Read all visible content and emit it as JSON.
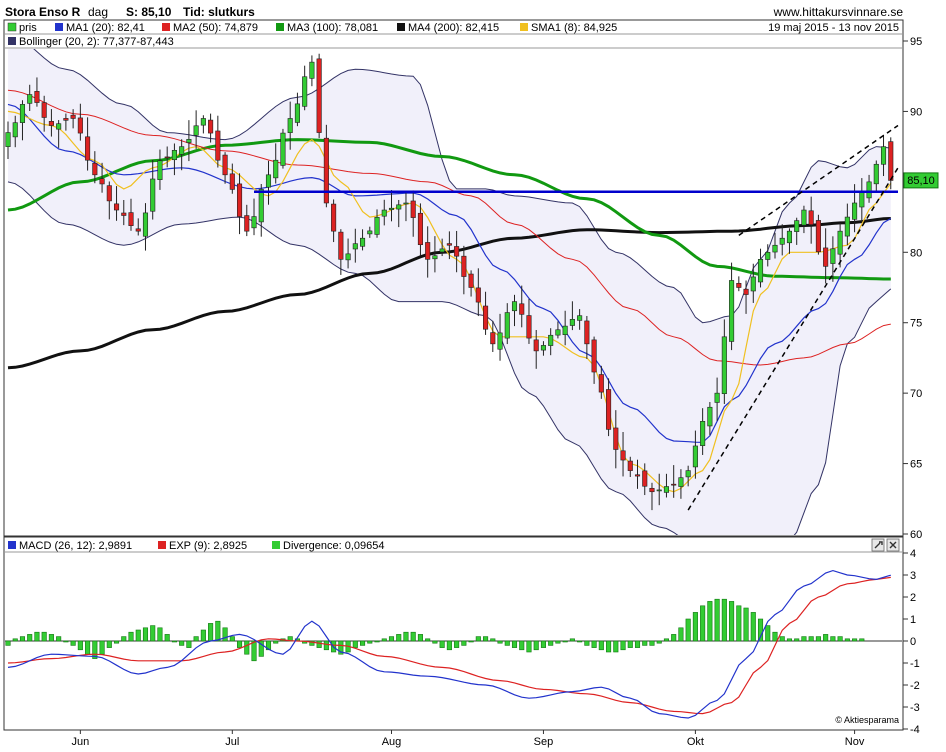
{
  "header": {
    "symbol": "Stora Enso R",
    "interval": "dag",
    "close_label": "S: 85,10",
    "type_label": "Tid: slutkurs",
    "site": "www.hittakursvinnare.se",
    "period": "19 maj 2015 - 13 nov 2015"
  },
  "legend": {
    "price": "pris",
    "ma1": "MA1 (20): 82,41",
    "ma2": "MA2 (50): 74,879",
    "ma3": "MA3 (100): 78,081",
    "ma4": "MA4 (200): 82,415",
    "sma1": "SMA1 (8): 84,925",
    "bollinger": "Bollinger (20, 2): 77,377-87,443"
  },
  "last_price_label": "85,10",
  "macd_legend": {
    "macd": "MACD (26, 12): 2,9891",
    "exp": "EXP (9): 2,8925",
    "div": "Divergence: 0,09654"
  },
  "credit": "© Aktiesparama",
  "colors": {
    "up": "#33cc33",
    "down": "#dd2222",
    "ma1": "#2233cc",
    "ma2": "#dd2222",
    "ma3": "#119911",
    "ma4": "#111111",
    "sma1": "#f0c020",
    "bollinger": "#333366",
    "band_fill": "#f1f0fa",
    "support": "#0000cc"
  },
  "icons": [
    "wrench-icon",
    "close-icon"
  ],
  "chart_data": [
    {
      "type": "candlestick",
      "ylim": [
        60,
        95
      ],
      "yticks": [
        60,
        65,
        70,
        75,
        80,
        85,
        90,
        95
      ],
      "xlabels": [
        {
          "i": 10,
          "label": "Jun"
        },
        {
          "i": 31,
          "label": "Jul"
        },
        {
          "i": 53,
          "label": "Aug"
        },
        {
          "i": 74,
          "label": "Sep"
        },
        {
          "i": 95,
          "label": "Okt"
        },
        {
          "i": 117,
          "label": "Nov"
        }
      ],
      "grid": false,
      "candle_anchor_close": [
        [
          0,
          88.5
        ],
        [
          3,
          91.2
        ],
        [
          6,
          89.0
        ],
        [
          9,
          89.5
        ],
        [
          12,
          85.5
        ],
        [
          15,
          83.0
        ],
        [
          18,
          81.5
        ],
        [
          21,
          86.5
        ],
        [
          24,
          87.5
        ],
        [
          27,
          89.5
        ],
        [
          30,
          85.5
        ],
        [
          33,
          81.5
        ],
        [
          36,
          85.5
        ],
        [
          39,
          89.5
        ],
        [
          42,
          93.5
        ],
        [
          44,
          83.5
        ],
        [
          46,
          79.5
        ],
        [
          49,
          81.0
        ],
        [
          52,
          83.0
        ],
        [
          55,
          83.5
        ],
        [
          58,
          79.5
        ],
        [
          61,
          80.5
        ],
        [
          64,
          77.5
        ],
        [
          67,
          73.5
        ],
        [
          70,
          76.5
        ],
        [
          73,
          73.0
        ],
        [
          76,
          74.5
        ],
        [
          79,
          75.5
        ],
        [
          81,
          71.5
        ],
        [
          84,
          66.0
        ],
        [
          86,
          64.5
        ],
        [
          89,
          63.0
        ],
        [
          92,
          63.5
        ],
        [
          94,
          64.5
        ],
        [
          96,
          68.0
        ],
        [
          98,
          70.0
        ],
        [
          100,
          78.0
        ],
        [
          102,
          77.0
        ],
        [
          104,
          79.5
        ],
        [
          106,
          80.5
        ],
        [
          108,
          81.5
        ],
        [
          110,
          83.0
        ],
        [
          113,
          79.0
        ],
        [
          115,
          81.5
        ],
        [
          117,
          83.5
        ],
        [
          119,
          85.0
        ],
        [
          121,
          87.5
        ],
        [
          122,
          85.1
        ]
      ],
      "ma_anchors": {
        "ma1": [
          [
            0,
            90.5
          ],
          [
            8,
            87.2
          ],
          [
            16,
            85.5
          ],
          [
            24,
            86.0
          ],
          [
            34,
            84.5
          ],
          [
            42,
            85.3
          ],
          [
            48,
            84.0
          ],
          [
            56,
            84.2
          ],
          [
            62,
            82.6
          ],
          [
            68,
            78.8
          ],
          [
            74,
            76.0
          ],
          [
            80,
            72.8
          ],
          [
            86,
            69.0
          ],
          [
            92,
            66.6
          ],
          [
            96,
            66.5
          ],
          [
            100,
            69.5
          ],
          [
            106,
            73.5
          ],
          [
            112,
            76.0
          ],
          [
            117,
            79.5
          ],
          [
            122,
            82.4
          ]
        ],
        "ma2": [
          [
            0,
            91.5
          ],
          [
            10,
            89.8
          ],
          [
            20,
            88.3
          ],
          [
            30,
            87.2
          ],
          [
            40,
            86.2
          ],
          [
            50,
            85.6
          ],
          [
            58,
            85.0
          ],
          [
            64,
            84.0
          ],
          [
            70,
            82.0
          ],
          [
            78,
            79.5
          ],
          [
            86,
            76.0
          ],
          [
            92,
            74.0
          ],
          [
            98,
            72.3
          ],
          [
            104,
            72.0
          ],
          [
            110,
            72.5
          ],
          [
            116,
            73.5
          ],
          [
            122,
            74.9
          ]
        ],
        "ma3": [
          [
            0,
            83.0
          ],
          [
            10,
            85.0
          ],
          [
            20,
            86.5
          ],
          [
            30,
            87.6
          ],
          [
            40,
            88.0
          ],
          [
            50,
            87.8
          ],
          [
            60,
            86.8
          ],
          [
            70,
            85.5
          ],
          [
            80,
            83.8
          ],
          [
            90,
            81.2
          ],
          [
            98,
            79.0
          ],
          [
            106,
            78.3
          ],
          [
            114,
            78.2
          ],
          [
            122,
            78.1
          ]
        ],
        "ma4": [
          [
            0,
            71.8
          ],
          [
            10,
            73.0
          ],
          [
            20,
            74.5
          ],
          [
            30,
            75.8
          ],
          [
            40,
            77.0
          ],
          [
            50,
            78.5
          ],
          [
            60,
            80.0
          ],
          [
            70,
            81.0
          ],
          [
            80,
            81.6
          ],
          [
            90,
            81.4
          ],
          [
            100,
            81.5
          ],
          [
            110,
            81.9
          ],
          [
            116,
            82.1
          ],
          [
            122,
            82.4
          ]
        ],
        "sma1": [
          [
            0,
            90.0
          ],
          [
            6,
            89.0
          ],
          [
            12,
            86.5
          ],
          [
            16,
            84.5
          ],
          [
            20,
            86.0
          ],
          [
            26,
            87.5
          ],
          [
            30,
            86.0
          ],
          [
            36,
            84.0
          ],
          [
            42,
            88.0
          ],
          [
            46,
            85.0
          ],
          [
            50,
            82.5
          ],
          [
            56,
            83.5
          ],
          [
            62,
            79.5
          ],
          [
            68,
            74.0
          ],
          [
            74,
            74.0
          ],
          [
            80,
            72.5
          ],
          [
            86,
            65.0
          ],
          [
            92,
            63.0
          ],
          [
            96,
            64.5
          ],
          [
            100,
            69.5
          ],
          [
            104,
            77.0
          ],
          [
            108,
            80.0
          ],
          [
            112,
            80.0
          ],
          [
            116,
            80.5
          ],
          [
            120,
            83.5
          ],
          [
            122,
            84.9
          ]
        ],
        "bb_upper": [
          [
            0,
            95.5
          ],
          [
            8,
            93.0
          ],
          [
            16,
            90.5
          ],
          [
            22,
            88.5
          ],
          [
            30,
            88.0
          ],
          [
            40,
            91.0
          ],
          [
            48,
            93.0
          ],
          [
            56,
            92.5
          ],
          [
            62,
            84.5
          ],
          [
            66,
            84.5
          ],
          [
            70,
            84.0
          ],
          [
            78,
            83.5
          ],
          [
            84,
            80.0
          ],
          [
            92,
            77.5
          ],
          [
            96,
            75.0
          ],
          [
            100,
            75.5
          ],
          [
            104,
            79.5
          ],
          [
            108,
            83.5
          ],
          [
            112,
            86.5
          ],
          [
            116,
            86.0
          ],
          [
            120,
            87.5
          ],
          [
            122,
            87.4
          ]
        ],
        "bb_lower": [
          [
            0,
            85.0
          ],
          [
            8,
            82.0
          ],
          [
            16,
            80.5
          ],
          [
            24,
            82.0
          ],
          [
            32,
            82.5
          ],
          [
            40,
            80.5
          ],
          [
            48,
            78.5
          ],
          [
            54,
            76.5
          ],
          [
            60,
            76.5
          ],
          [
            66,
            75.5
          ],
          [
            72,
            70.0
          ],
          [
            78,
            66.5
          ],
          [
            84,
            63.0
          ],
          [
            90,
            60.5
          ],
          [
            96,
            59.0
          ],
          [
            102,
            58.5
          ],
          [
            108,
            59.5
          ],
          [
            112,
            63.5
          ],
          [
            116,
            73.5
          ],
          [
            120,
            76.5
          ],
          [
            122,
            77.4
          ]
        ]
      },
      "support_line": {
        "from_i": 34,
        "to_i": 123,
        "value": 84.3
      },
      "channel_upper": [
        [
          101,
          81.2
        ],
        [
          123,
          89.0
        ]
      ],
      "channel_lower": [
        [
          94,
          61.7
        ],
        [
          123,
          86.0
        ]
      ],
      "last_value": 85.1
    },
    {
      "type": "macd",
      "ylim": [
        -4,
        4
      ],
      "yticks": [
        -4,
        -3,
        -2,
        -1,
        0,
        1,
        2,
        3,
        4
      ],
      "macd_anchors": [
        [
          0,
          -1.2
        ],
        [
          6,
          -0.6
        ],
        [
          12,
          -0.7
        ],
        [
          18,
          -1.5
        ],
        [
          22,
          -1.2
        ],
        [
          28,
          0.0
        ],
        [
          32,
          0.3
        ],
        [
          38,
          -0.6
        ],
        [
          42,
          0.9
        ],
        [
          46,
          -0.5
        ],
        [
          52,
          -1.4
        ],
        [
          58,
          -1.6
        ],
        [
          66,
          -2.0
        ],
        [
          72,
          -2.6
        ],
        [
          78,
          -2.3
        ],
        [
          82,
          -2.1
        ],
        [
          86,
          -2.6
        ],
        [
          90,
          -3.3
        ],
        [
          94,
          -3.5
        ],
        [
          98,
          -2.7
        ],
        [
          102,
          -0.8
        ],
        [
          106,
          1.2
        ],
        [
          110,
          2.5
        ],
        [
          114,
          3.2
        ],
        [
          116,
          3.0
        ],
        [
          120,
          2.8
        ],
        [
          122,
          2.99
        ]
      ],
      "exp_anchors": [
        [
          0,
          -1.0
        ],
        [
          6,
          -0.8
        ],
        [
          12,
          -0.6
        ],
        [
          18,
          -0.9
        ],
        [
          24,
          -0.9
        ],
        [
          30,
          -0.5
        ],
        [
          36,
          0.1
        ],
        [
          40,
          0.0
        ],
        [
          46,
          -0.2
        ],
        [
          52,
          -0.7
        ],
        [
          60,
          -1.2
        ],
        [
          68,
          -1.8
        ],
        [
          74,
          -2.2
        ],
        [
          80,
          -2.4
        ],
        [
          86,
          -2.8
        ],
        [
          92,
          -3.2
        ],
        [
          96,
          -3.3
        ],
        [
          100,
          -2.8
        ],
        [
          104,
          -1.2
        ],
        [
          108,
          0.8
        ],
        [
          112,
          2.0
        ],
        [
          116,
          2.6
        ],
        [
          120,
          2.8
        ],
        [
          122,
          2.89
        ]
      ],
      "divergence": [
        -0.2,
        0.1,
        0.2,
        0.3,
        0.4,
        0.4,
        0.3,
        0.2,
        0.0,
        -0.2,
        -0.4,
        -0.6,
        -0.8,
        -0.6,
        -0.3,
        -0.1,
        0.2,
        0.4,
        0.5,
        0.6,
        0.7,
        0.6,
        0.3,
        0.0,
        -0.2,
        -0.3,
        0.2,
        0.5,
        0.8,
        0.9,
        0.6,
        0.2,
        -0.3,
        -0.6,
        -0.9,
        -0.7,
        -0.4,
        -0.1,
        0.1,
        0.2,
        0.1,
        -0.1,
        -0.2,
        -0.3,
        -0.4,
        -0.5,
        -0.6,
        -0.5,
        -0.3,
        -0.2,
        -0.1,
        0.0,
        0.1,
        0.2,
        0.3,
        0.4,
        0.4,
        0.3,
        0.1,
        -0.1,
        -0.3,
        -0.4,
        -0.3,
        -0.2,
        0.0,
        0.2,
        0.2,
        0.1,
        -0.1,
        -0.2,
        -0.3,
        -0.4,
        -0.5,
        -0.4,
        -0.3,
        -0.2,
        -0.1,
        0.0,
        0.1,
        0.0,
        -0.2,
        -0.3,
        -0.4,
        -0.5,
        -0.5,
        -0.4,
        -0.3,
        -0.3,
        -0.2,
        -0.2,
        -0.1,
        0.1,
        0.3,
        0.6,
        1.0,
        1.3,
        1.6,
        1.8,
        1.9,
        1.9,
        1.8,
        1.6,
        1.5,
        1.3,
        1.0,
        0.7,
        0.4,
        0.2,
        0.1,
        0.1,
        0.2,
        0.2,
        0.2,
        0.3,
        0.2,
        0.2,
        0.1,
        0.1,
        0.1
      ]
    }
  ]
}
